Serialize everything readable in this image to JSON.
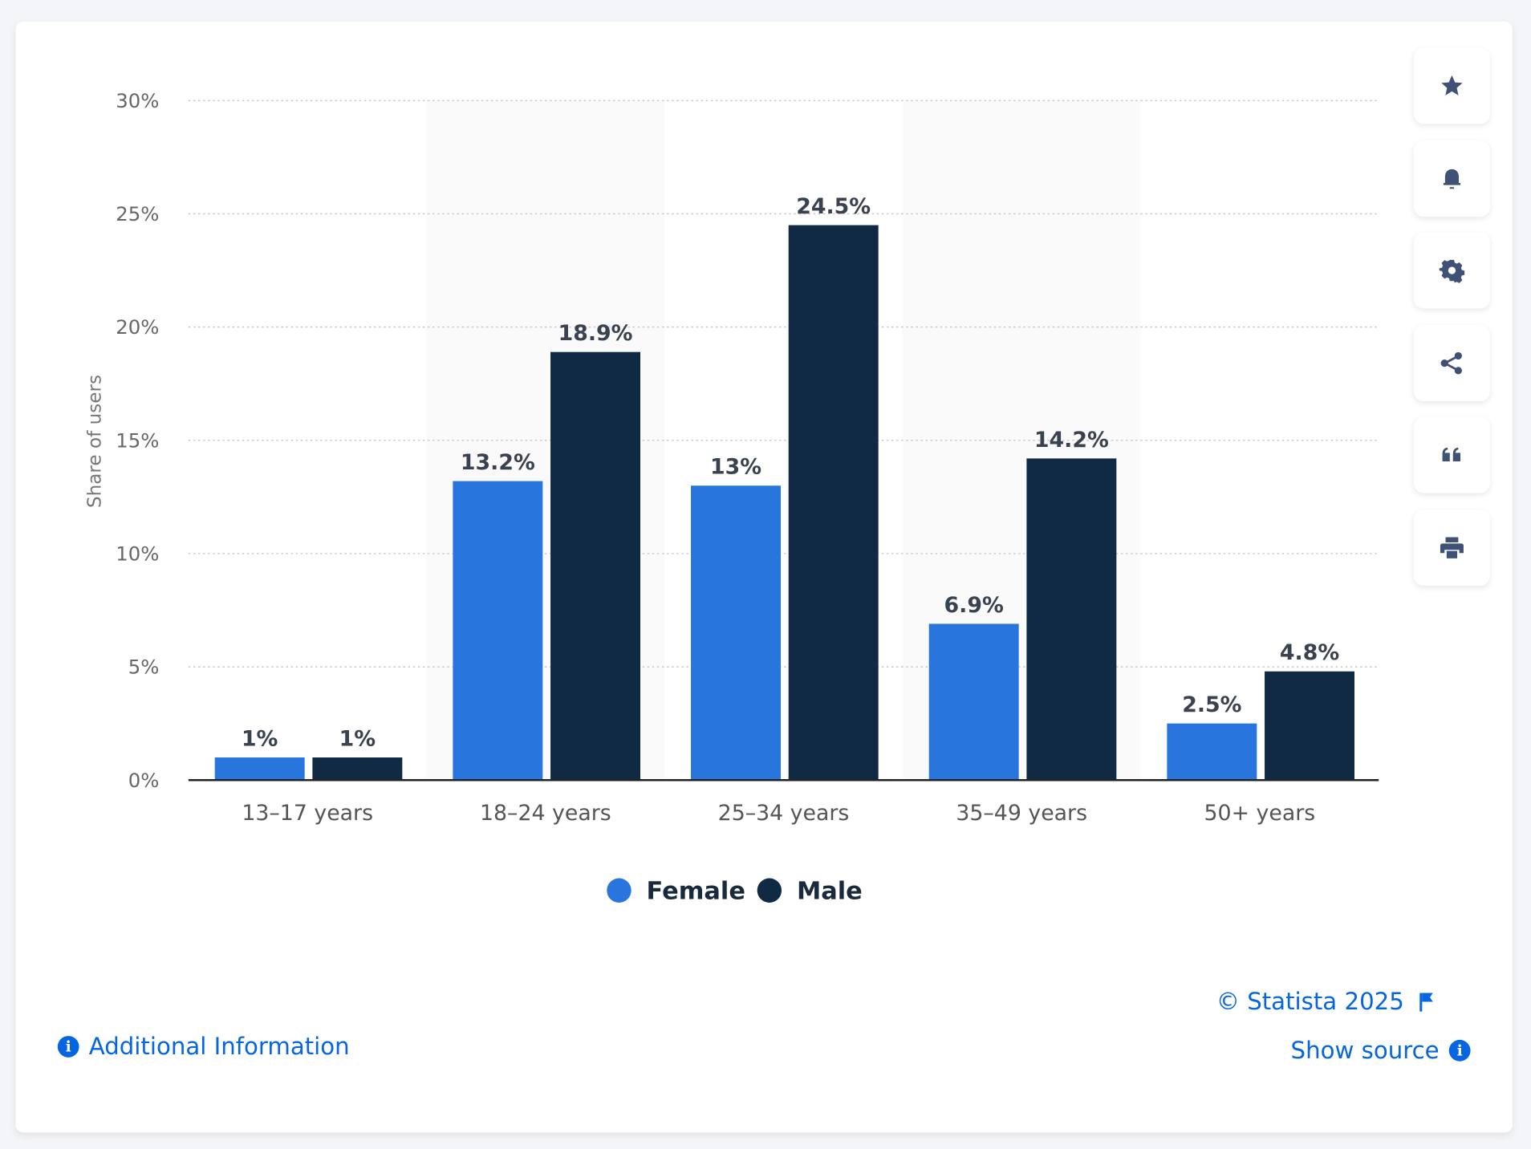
{
  "chart_data": {
    "type": "bar",
    "title": "",
    "xlabel": "",
    "ylabel": "Share of users",
    "ylim": [
      0,
      30
    ],
    "yticks": [
      "0%",
      "5%",
      "10%",
      "15%",
      "20%",
      "25%",
      "30%"
    ],
    "ytick_values": [
      0,
      5,
      10,
      15,
      20,
      25,
      30
    ],
    "grid": true,
    "legend_position": "bottom-center",
    "categories": [
      "13–17 years",
      "18–24 years",
      "25–34 years",
      "35–49 years",
      "50+ years"
    ],
    "series": [
      {
        "name": "Female",
        "color": "#2876dd",
        "values": [
          1,
          13.2,
          13,
          6.9,
          2.5
        ],
        "labels": [
          "1%",
          "13.2%",
          "13%",
          "6.9%",
          "2.5%"
        ]
      },
      {
        "name": "Male",
        "color": "#0f2a42",
        "values": [
          1,
          18.9,
          24.5,
          14.2,
          4.8
        ],
        "labels": [
          "1%",
          "18.9%",
          "24.5%",
          "14.2%",
          "4.8%"
        ]
      }
    ]
  },
  "toolbar": {
    "icons": [
      "star-icon",
      "bell-icon",
      "gear-icon",
      "share-icon",
      "quote-icon",
      "print-icon"
    ]
  },
  "footer": {
    "copyright": "© Statista 2025",
    "show_source": "Show source",
    "additional_info": "Additional Information"
  }
}
